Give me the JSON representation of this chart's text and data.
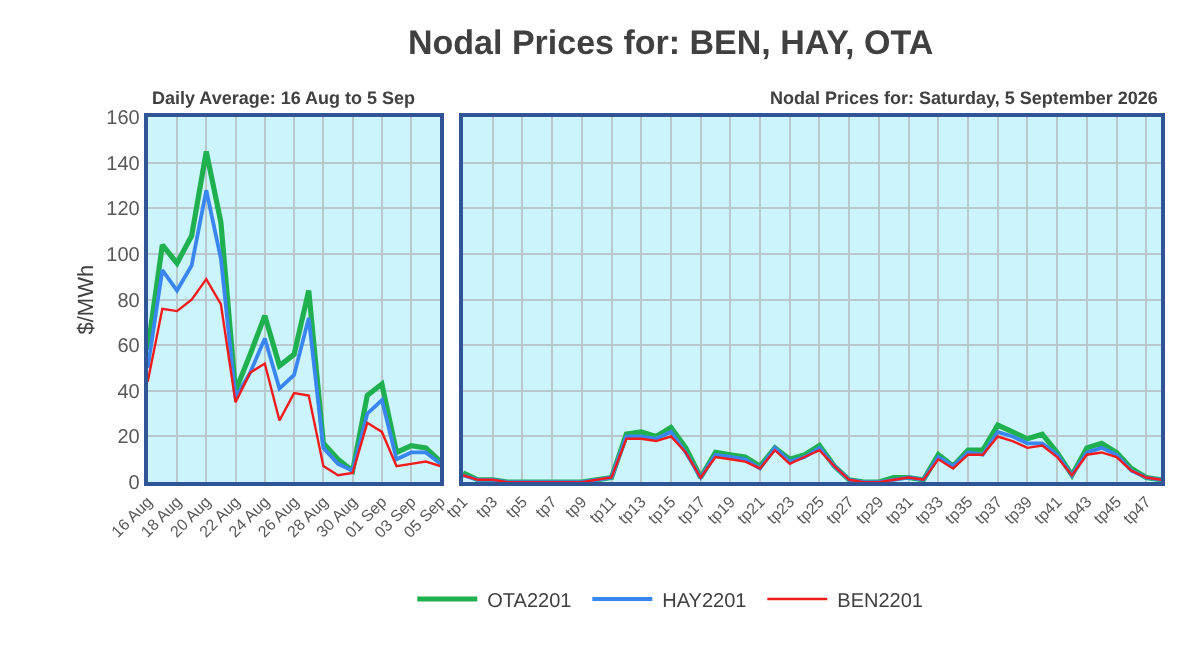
{
  "chart_data": [
    {
      "type": "line",
      "subtitle": "Daily Average: 16 Aug to 5 Sep",
      "ylabel": "$/MWh",
      "categories": [
        "16 Aug",
        null,
        "18 Aug",
        null,
        "20 Aug",
        null,
        "22 Aug",
        null,
        "24 Aug",
        null,
        "26 Aug",
        null,
        "28 Aug",
        null,
        "30 Aug",
        null,
        "01 Sep",
        null,
        "03 Sep",
        null,
        "05 Sep"
      ],
      "ylim": [
        0,
        160
      ],
      "yticks": [
        0,
        20,
        40,
        60,
        80,
        100,
        120,
        140,
        160
      ],
      "grid": true,
      "legend": "bottom",
      "marker": "none",
      "line_style": "solid",
      "series": [
        {
          "name": "OTA2201",
          "color": "#1fb050",
          "values": [
            58,
            104,
            96,
            108,
            145,
            114,
            40,
            56,
            73,
            51,
            56,
            84,
            17,
            10,
            5,
            38,
            43,
            13,
            16,
            15,
            9
          ]
        },
        {
          "name": "HAY2201",
          "color": "#3a86f0",
          "values": [
            50,
            93,
            84,
            95,
            128,
            98,
            37,
            48,
            63,
            41,
            47,
            72,
            15,
            8,
            5,
            30,
            36,
            10,
            13,
            13,
            8
          ]
        },
        {
          "name": "BEN2201",
          "color": "#f01c1c",
          "values": [
            44,
            76,
            75,
            80,
            89,
            78,
            35,
            48,
            52,
            27,
            39,
            38,
            7,
            3,
            4,
            26,
            22,
            7,
            8,
            9,
            7
          ]
        }
      ]
    },
    {
      "type": "line",
      "title": "Nodal Prices for: BEN, HAY, OTA",
      "subtitle": "Nodal Prices for: Saturday, 5 September 2026",
      "categories": [
        "tp1",
        null,
        "tp3",
        null,
        "tp5",
        null,
        "tp7",
        null,
        "tp9",
        null,
        "tp11",
        null,
        "tp13",
        null,
        "tp15",
        null,
        "tp17",
        null,
        "tp19",
        null,
        "tp21",
        null,
        "tp23",
        null,
        "tp25",
        null,
        "tp27",
        null,
        "tp29",
        null,
        "tp31",
        null,
        "tp33",
        null,
        "tp35",
        null,
        "tp37",
        null,
        "tp39",
        null,
        "tp41",
        null,
        "tp43",
        null,
        "tp45",
        null,
        "tp47",
        null
      ],
      "ylim": [
        0,
        160
      ],
      "tick_labels": "x",
      "grid": true,
      "marker": "none",
      "line_style": "solid",
      "series": [
        {
          "color": "#1fb050",
          "values": [
            4,
            1,
            1,
            0,
            0,
            0,
            0,
            0,
            0,
            1,
            2,
            21,
            22,
            20,
            24,
            15,
            2,
            13,
            12,
            11,
            7,
            15,
            10,
            12,
            16,
            7,
            1,
            0,
            0,
            2,
            2,
            1,
            12,
            7,
            14,
            14,
            25,
            22,
            19,
            21,
            13,
            3,
            15,
            17,
            13,
            6,
            2,
            1
          ]
        },
        {
          "color": "#3a86f0",
          "values": [
            3,
            1,
            1,
            0,
            0,
            0,
            0,
            0,
            0,
            1,
            2,
            20,
            20,
            19,
            22,
            13,
            2,
            12,
            11,
            10,
            6,
            15,
            9,
            11,
            15,
            7,
            1,
            0,
            0,
            1,
            2,
            1,
            11,
            7,
            13,
            12,
            22,
            20,
            17,
            17,
            12,
            3,
            13,
            15,
            12,
            5,
            2,
            1
          ]
        },
        {
          "color": "#f01c1c",
          "values": [
            3,
            1,
            1,
            0,
            0,
            0,
            0,
            0,
            0,
            1,
            2,
            19,
            19,
            18,
            20,
            13,
            2,
            11,
            10,
            9,
            6,
            14,
            8,
            11,
            14,
            7,
            1,
            0,
            0,
            1,
            2,
            1,
            10,
            6,
            12,
            12,
            20,
            18,
            15,
            16,
            11,
            3,
            12,
            13,
            11,
            5,
            2,
            1
          ]
        }
      ]
    }
  ]
}
